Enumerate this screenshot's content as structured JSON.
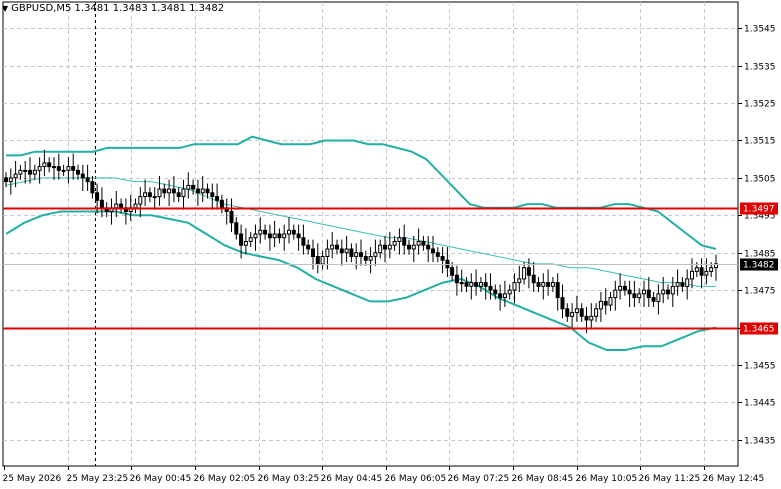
{
  "header": {
    "symbol": "GBPUSD,M5",
    "open": "1.3481",
    "high": "1.3483",
    "low": "1.3481",
    "close": "1.3482",
    "collapse_icon": "triangle-down-icon"
  },
  "colors": {
    "background": "#ffffff",
    "grid": "#c8c8c8",
    "bands": "#22b0a4",
    "middle_band": "#3cc0b4",
    "level_line": "#e00000",
    "candle": "#000000",
    "price_tag": "#000000"
  },
  "y_axis": {
    "ticks": [
      "1.3545",
      "1.3535",
      "1.3525",
      "1.3515",
      "1.3505",
      "1.3495",
      "1.3485",
      "1.3475",
      "1.3465",
      "1.3455",
      "1.3445",
      "1.3435"
    ],
    "range": [
      1.3428,
      1.3552
    ]
  },
  "x_axis": {
    "ticks": [
      "25 May 2026",
      "25 May 23:25",
      "26 May 00:45",
      "26 May 02:05",
      "26 May 03:25",
      "26 May 04:45",
      "26 May 06:05",
      "26 May 07:25",
      "26 May 08:45",
      "26 May 10:05",
      "26 May 11:25",
      "26 May 12:45"
    ]
  },
  "levels": [
    {
      "price": 1.3497,
      "label": "1.3497"
    },
    {
      "price": 1.3465,
      "label": "1.3465"
    }
  ],
  "current_price": {
    "price": 1.3482,
    "label": "1.3482"
  },
  "chart_data": {
    "type": "line",
    "title": "GBPUSD,M5",
    "ylim": [
      1.3428,
      1.3552
    ],
    "grid": true,
    "closes": [
      1.3504,
      1.3505,
      1.3506,
      1.3507,
      1.3507,
      1.3506,
      1.3507,
      1.3508,
      1.3509,
      1.3508,
      1.3508,
      1.3507,
      1.3507,
      1.3508,
      1.3507,
      1.3506,
      1.3505,
      1.3504,
      1.3501,
      1.3499,
      1.3497,
      1.3496,
      1.3497,
      1.3498,
      1.3497,
      1.3496,
      1.3497,
      1.3498,
      1.35,
      1.3501,
      1.35,
      1.35,
      1.3502,
      1.3501,
      1.3502,
      1.3501,
      1.35,
      1.3502,
      1.3503,
      1.3502,
      1.3501,
      1.3502,
      1.3501,
      1.35,
      1.3499,
      1.3497,
      1.3496,
      1.3493,
      1.349,
      1.3487,
      1.3488,
      1.3489,
      1.349,
      1.3491,
      1.349,
      1.3489,
      1.349,
      1.3489,
      1.349,
      1.3491,
      1.349,
      1.3489,
      1.3487,
      1.3486,
      1.3484,
      1.3482,
      1.3484,
      1.3486,
      1.3487,
      1.3486,
      1.3485,
      1.3486,
      1.3484,
      1.3485,
      1.3484,
      1.3483,
      1.3484,
      1.3485,
      1.3487,
      1.3486,
      1.3487,
      1.3488,
      1.3489,
      1.3487,
      1.3486,
      1.3487,
      1.3488,
      1.3487,
      1.3486,
      1.3485,
      1.3484,
      1.3483,
      1.3481,
      1.3479,
      1.3477,
      1.3477,
      1.3476,
      1.3477,
      1.3476,
      1.3477,
      1.3476,
      1.3475,
      1.3474,
      1.3473,
      1.3474,
      1.3475,
      1.3477,
      1.3478,
      1.3481,
      1.3479,
      1.3477,
      1.3476,
      1.3477,
      1.3476,
      1.3477,
      1.3473,
      1.347,
      1.3468,
      1.3469,
      1.347,
      1.3468,
      1.3467,
      1.3468,
      1.347,
      1.3472,
      1.3471,
      1.3473,
      1.3475,
      1.3476,
      1.3475,
      1.3474,
      1.3473,
      1.3474,
      1.3475,
      1.3473,
      1.3472,
      1.3474,
      1.3475,
      1.3474,
      1.3476,
      1.3477,
      1.3476,
      1.3478,
      1.348,
      1.3481,
      1.3479,
      1.348,
      1.3481,
      1.3482
    ],
    "bollinger_upper": [
      1.3511,
      1.3511,
      1.3512,
      1.3512,
      1.3512,
      1.3512,
      1.3512,
      1.3513,
      1.3513,
      1.3513,
      1.3513,
      1.3513,
      1.3513,
      1.3514,
      1.3514,
      1.3514,
      1.3514,
      1.3516,
      1.3515,
      1.3514,
      1.3514,
      1.3514,
      1.3515,
      1.3515,
      1.3515,
      1.3514,
      1.3514,
      1.3513,
      1.3512,
      1.351,
      1.3506,
      1.3502,
      1.3498,
      1.3497,
      1.3497,
      1.3497,
      1.3498,
      1.3498,
      1.3497,
      1.3497,
      1.3497,
      1.3497,
      1.3498,
      1.3498,
      1.3497,
      1.3496,
      1.3493,
      1.349,
      1.3487,
      1.3486
    ],
    "bollinger_middle": [
      1.3503,
      1.3504,
      1.3505,
      1.3505,
      1.3505,
      1.3505,
      1.3505,
      1.3504,
      1.3504,
      1.3503,
      1.3502,
      1.35,
      1.3498,
      1.3497,
      1.3496,
      1.3495,
      1.3494,
      1.3493,
      1.3492,
      1.3491,
      1.349,
      1.3489,
      1.3489,
      1.3488,
      1.3487,
      1.3486,
      1.3485,
      1.3484,
      1.3483,
      1.3482,
      1.3482,
      1.3481,
      1.3481,
      1.348,
      1.3479,
      1.3478,
      1.3477,
      1.3477,
      1.3476,
      1.3476
    ],
    "bollinger_lower": [
      1.349,
      1.3493,
      1.3495,
      1.3496,
      1.3496,
      1.3496,
      1.3496,
      1.3495,
      1.3495,
      1.3494,
      1.3493,
      1.349,
      1.3487,
      1.3485,
      1.3484,
      1.3483,
      1.3481,
      1.3478,
      1.3476,
      1.3474,
      1.3472,
      1.3472,
      1.3473,
      1.3475,
      1.3477,
      1.3478,
      1.3476,
      1.3473,
      1.3471,
      1.3469,
      1.3467,
      1.3465,
      1.3461,
      1.3459,
      1.3459,
      1.346,
      1.346,
      1.3462,
      1.3464,
      1.3465
    ]
  }
}
